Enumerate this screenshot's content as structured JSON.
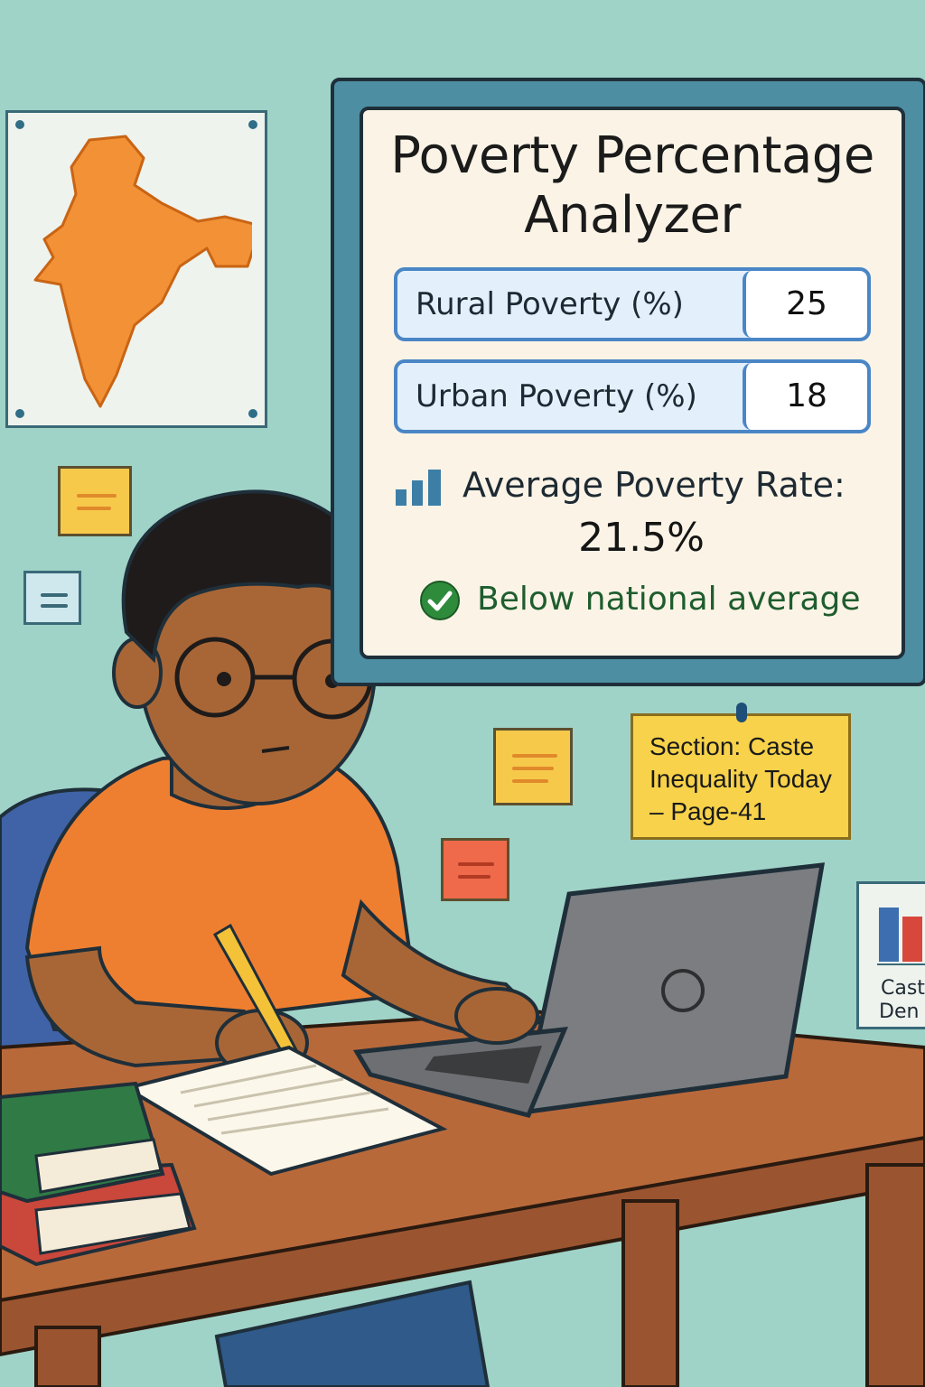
{
  "analyzer": {
    "title_line1": "Poverty Percentage",
    "title_line2": "Analyzer",
    "rural": {
      "label": "Rural Poverty (%)",
      "value": "25"
    },
    "urban": {
      "label": "Urban Poverty (%)",
      "value": "18"
    },
    "average_label": "Average Poverty Rate:",
    "average_value": "21.5%",
    "status": "Below national average",
    "accent_color": "#4a86c6",
    "status_color": "#2e8b3c"
  },
  "sticky_note": {
    "line1": "Section: Caste",
    "line2": "Inequality Today",
    "line3": "– Page-41"
  },
  "side_poster": {
    "line1": "Cast",
    "line2": "Den c"
  },
  "icons": {
    "map": "india-map-icon",
    "bars": "bar-chart-icon",
    "check": "check-circle-icon"
  }
}
